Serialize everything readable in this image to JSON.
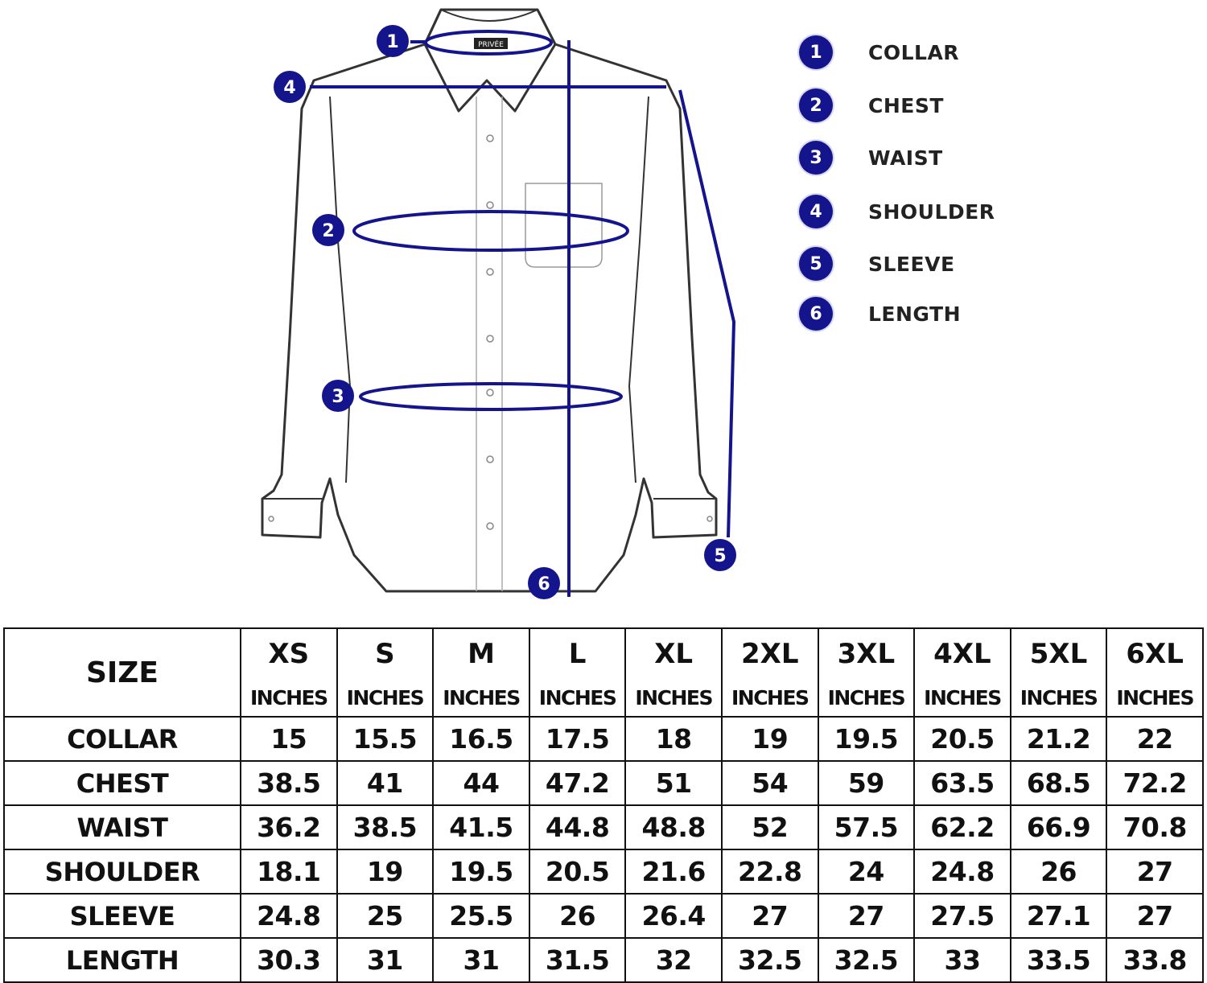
{
  "brand_label": "PRIVÉE",
  "colors": {
    "measure": "#14148c",
    "outline": "#333333"
  },
  "legend": [
    {
      "number": "1",
      "label": "COLLAR"
    },
    {
      "number": "2",
      "label": "CHEST"
    },
    {
      "number": "3",
      "label": "WAIST"
    },
    {
      "number": "4",
      "label": "SHOULDER"
    },
    {
      "number": "5",
      "label": "SLEEVE"
    },
    {
      "number": "6",
      "label": "LENGTH"
    }
  ],
  "table": {
    "corner": "SIZE",
    "sizes": [
      "XS",
      "S",
      "M",
      "L",
      "XL",
      "2XL",
      "3XL",
      "4XL",
      "5XL",
      "6XL"
    ],
    "unit": "INCHES",
    "rows": [
      {
        "label": "COLLAR",
        "values": [
          "15",
          "15.5",
          "16.5",
          "17.5",
          "18",
          "19",
          "19.5",
          "20.5",
          "21.2",
          "22"
        ]
      },
      {
        "label": "CHEST",
        "values": [
          "38.5",
          "41",
          "44",
          "47.2",
          "51",
          "54",
          "59",
          "63.5",
          "68.5",
          "72.2"
        ]
      },
      {
        "label": "WAIST",
        "values": [
          "36.2",
          "38.5",
          "41.5",
          "44.8",
          "48.8",
          "52",
          "57.5",
          "62.2",
          "66.9",
          "70.8"
        ]
      },
      {
        "label": "SHOULDER",
        "values": [
          "18.1",
          "19",
          "19.5",
          "20.5",
          "21.6",
          "22.8",
          "24",
          "24.8",
          "26",
          "27"
        ]
      },
      {
        "label": "SLEEVE",
        "values": [
          "24.8",
          "25",
          "25.5",
          "26",
          "26.4",
          "27",
          "27",
          "27.5",
          "27.1",
          "27"
        ]
      },
      {
        "label": "LENGTH",
        "values": [
          "30.3",
          "31",
          "31",
          "31.5",
          "32",
          "32.5",
          "32.5",
          "33",
          "33.5",
          "33.8"
        ]
      }
    ]
  }
}
